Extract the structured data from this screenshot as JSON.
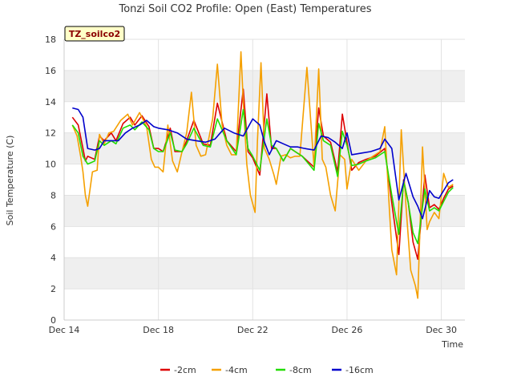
{
  "chart_data": {
    "type": "line",
    "title": "Tonzi Soil CO2 Profile: Open (East) Temperatures",
    "xlabel": "Time",
    "ylabel": "Soil Temperature (C)",
    "badge": "TZ_soilco2",
    "xlim": [
      14,
      31
    ],
    "ylim": [
      0,
      18
    ],
    "yticks": [
      0,
      2,
      4,
      6,
      8,
      10,
      12,
      14,
      16,
      18
    ],
    "xticks": [
      {
        "value": 14,
        "label": "Dec 14"
      },
      {
        "value": 18,
        "label": "Dec 18"
      },
      {
        "value": 22,
        "label": "Dec 22"
      },
      {
        "value": 26,
        "label": "Dec 26"
      },
      {
        "value": 30,
        "label": "Dec 30"
      }
    ],
    "legend_position": "bottom-center",
    "series": [
      {
        "name": "-2cm",
        "color": "#dd0000",
        "x": [
          14.35,
          14.6,
          14.8,
          14.9,
          15.0,
          15.3,
          15.5,
          15.7,
          16.0,
          16.2,
          16.5,
          16.8,
          17.0,
          17.3,
          17.6,
          17.8,
          18.0,
          18.2,
          18.5,
          18.7,
          19.0,
          19.2,
          19.5,
          19.9,
          20.2,
          20.5,
          20.9,
          21.3,
          21.6,
          21.8,
          22.0,
          22.3,
          22.6,
          22.8,
          23.0,
          23.3,
          23.6,
          23.8,
          24.1,
          24.6,
          24.8,
          25.0,
          25.3,
          25.6,
          25.8,
          26.0,
          26.2,
          26.5,
          26.8,
          27.2,
          27.6,
          27.9,
          28.2,
          28.4,
          28.6,
          28.8,
          29.0,
          29.3,
          29.5,
          29.7,
          29.9,
          30.1,
          30.3,
          30.5
        ],
        "y": [
          13.0,
          12.5,
          11.0,
          10.2,
          10.5,
          10.3,
          11.8,
          11.5,
          12.0,
          11.5,
          12.6,
          13.0,
          12.5,
          13.1,
          12.4,
          11.0,
          11.0,
          10.8,
          12.3,
          10.8,
          10.8,
          11.5,
          12.8,
          11.3,
          11.2,
          13.9,
          11.5,
          10.8,
          14.8,
          10.8,
          10.4,
          9.3,
          14.5,
          11.0,
          11.0,
          10.2,
          11.0,
          10.8,
          10.5,
          9.8,
          13.6,
          11.8,
          11.4,
          9.5,
          13.2,
          11.4,
          9.6,
          10.1,
          10.3,
          10.5,
          11.0,
          7.5,
          4.2,
          9.0,
          7.5,
          5.0,
          3.9,
          9.3,
          7.2,
          7.4,
          7.1,
          7.8,
          8.4,
          8.6
        ]
      },
      {
        "name": "-4cm",
        "color": "#f5a000",
        "x": [
          14.35,
          14.55,
          14.7,
          14.8,
          14.9,
          15.0,
          15.2,
          15.4,
          15.5,
          15.7,
          15.9,
          16.1,
          16.4,
          16.7,
          16.9,
          17.2,
          17.5,
          17.7,
          17.85,
          18.0,
          18.2,
          18.4,
          18.6,
          18.8,
          19.0,
          19.2,
          19.4,
          19.6,
          19.8,
          20.0,
          20.3,
          20.5,
          20.7,
          20.9,
          21.1,
          21.3,
          21.5,
          21.6,
          21.75,
          21.9,
          22.1,
          22.2,
          22.35,
          22.5,
          22.7,
          22.9,
          23.0,
          23.2,
          23.4,
          23.6,
          23.8,
          24.0,
          24.3,
          24.6,
          24.8,
          24.95,
          25.1,
          25.3,
          25.5,
          25.7,
          25.9,
          26.0,
          26.2,
          26.5,
          26.8,
          27.1,
          27.4,
          27.6,
          27.8,
          27.9,
          28.1,
          28.3,
          28.5,
          28.7,
          28.9,
          29.0,
          29.2,
          29.4,
          29.5,
          29.7,
          29.9,
          30.1,
          30.3,
          30.5
        ],
        "y": [
          12.5,
          11.8,
          10.5,
          9.5,
          8.0,
          7.3,
          9.5,
          9.6,
          11.9,
          11.3,
          12.0,
          12.1,
          12.8,
          13.2,
          12.5,
          13.3,
          12.4,
          10.3,
          9.8,
          9.8,
          9.5,
          12.5,
          10.2,
          9.5,
          10.8,
          12.0,
          14.6,
          11.2,
          10.5,
          10.6,
          12.9,
          16.4,
          12.5,
          11.2,
          10.6,
          10.6,
          17.2,
          14.0,
          10.0,
          8.0,
          6.9,
          11.5,
          16.5,
          11.0,
          10.3,
          9.3,
          8.7,
          10.5,
          10.6,
          10.4,
          10.5,
          10.5,
          16.2,
          9.8,
          16.1,
          10.3,
          9.8,
          8.0,
          7.0,
          10.6,
          10.3,
          8.4,
          10.3,
          9.6,
          10.2,
          10.5,
          10.8,
          12.4,
          7.0,
          4.5,
          2.9,
          12.2,
          7.3,
          3.2,
          2.2,
          1.4,
          11.1,
          5.8,
          6.3,
          6.9,
          6.5,
          9.4,
          8.5,
          8.7
        ]
      },
      {
        "name": "-8cm",
        "color": "#22dd00",
        "x": [
          14.35,
          14.6,
          14.8,
          15.0,
          15.3,
          15.5,
          15.7,
          16.0,
          16.2,
          16.5,
          16.8,
          17.0,
          17.3,
          17.6,
          17.8,
          18.0,
          18.2,
          18.5,
          18.7,
          19.0,
          19.2,
          19.5,
          19.9,
          20.2,
          20.5,
          20.9,
          21.3,
          21.6,
          21.8,
          22.0,
          22.3,
          22.6,
          22.8,
          23.0,
          23.3,
          23.6,
          23.8,
          24.1,
          24.6,
          24.8,
          25.0,
          25.3,
          25.6,
          25.8,
          26.0,
          26.2,
          26.5,
          26.8,
          27.2,
          27.6,
          27.9,
          28.2,
          28.4,
          28.6,
          28.8,
          29.0,
          29.3,
          29.5,
          29.7,
          29.9,
          30.1,
          30.3,
          30.5
        ],
        "y": [
          12.5,
          12.0,
          10.5,
          10.0,
          10.2,
          11.5,
          11.2,
          11.5,
          11.3,
          12.3,
          12.5,
          12.2,
          12.7,
          12.2,
          11.0,
          10.8,
          10.8,
          12.0,
          10.9,
          10.8,
          11.3,
          12.3,
          11.2,
          11.1,
          12.9,
          11.5,
          10.6,
          13.5,
          11.0,
          10.5,
          9.6,
          12.9,
          11.2,
          11.0,
          10.2,
          11.0,
          10.8,
          10.5,
          9.6,
          12.6,
          11.5,
          11.2,
          9.2,
          12.1,
          11.2,
          9.9,
          10.0,
          10.2,
          10.4,
          10.8,
          8.0,
          5.5,
          8.9,
          7.5,
          5.6,
          4.9,
          8.4,
          7.0,
          7.2,
          7.0,
          7.6,
          8.2,
          8.5
        ]
      },
      {
        "name": "-16cm",
        "color": "#0000cc",
        "x": [
          14.35,
          14.6,
          14.8,
          15.0,
          15.3,
          15.5,
          15.7,
          16.0,
          16.3,
          16.6,
          16.9,
          17.2,
          17.5,
          17.8,
          18.0,
          18.4,
          18.8,
          19.2,
          19.6,
          20.0,
          20.4,
          20.8,
          21.2,
          21.6,
          22.0,
          22.3,
          22.5,
          22.7,
          23.0,
          23.3,
          23.6,
          23.9,
          24.2,
          24.6,
          24.9,
          25.2,
          25.5,
          25.8,
          26.0,
          26.2,
          26.6,
          27.0,
          27.4,
          27.6,
          27.9,
          28.2,
          28.5,
          28.8,
          29.0,
          29.2,
          29.5,
          29.7,
          29.9,
          30.1,
          30.3,
          30.5
        ],
        "y": [
          13.6,
          13.5,
          13.0,
          11.0,
          10.9,
          11.0,
          11.5,
          11.5,
          11.5,
          12.0,
          12.3,
          12.5,
          12.8,
          12.4,
          12.3,
          12.2,
          12.0,
          11.6,
          11.5,
          11.4,
          11.6,
          12.3,
          12.0,
          11.8,
          12.9,
          12.5,
          11.4,
          10.6,
          11.5,
          11.3,
          11.1,
          11.1,
          11.0,
          10.9,
          11.8,
          11.7,
          11.4,
          11.0,
          12.0,
          10.6,
          10.7,
          10.8,
          11.0,
          11.6,
          11.0,
          7.7,
          9.4,
          7.9,
          7.3,
          6.5,
          8.3,
          7.9,
          7.8,
          8.3,
          8.8,
          9.0
        ]
      }
    ]
  }
}
